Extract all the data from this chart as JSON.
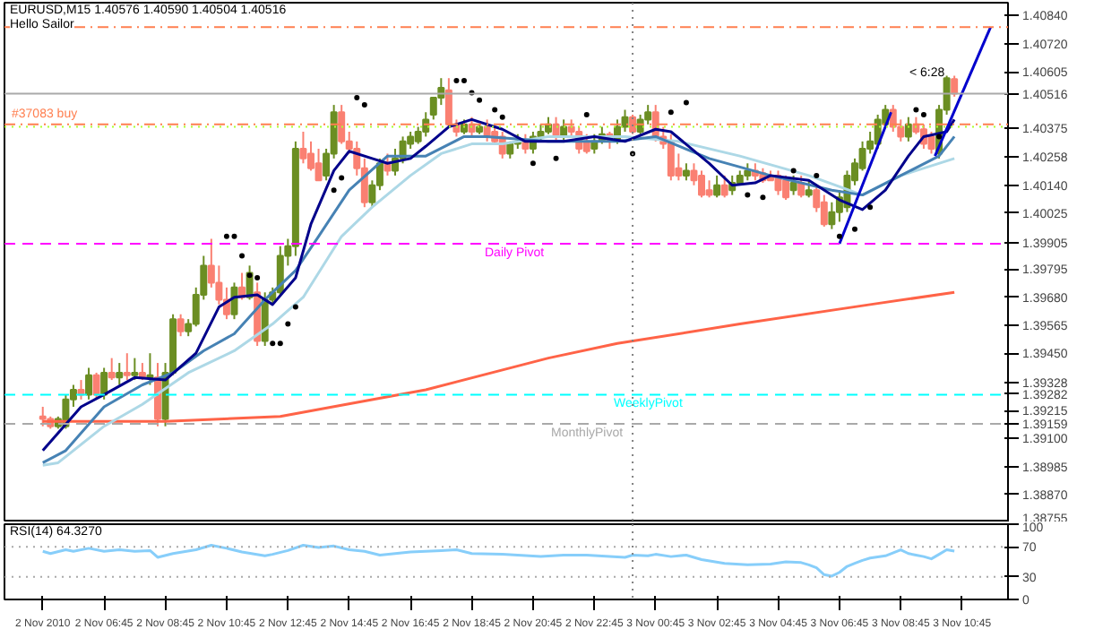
{
  "chart_data": [
    {
      "type": "candlestick",
      "title": "EURUSD,M15 1.40576 1.40590 1.40504 1.40516",
      "subtitle": "Hello Sailor",
      "x": [
        "2010-11-02T04:45",
        "2010-11-02T05:00",
        "2010-11-02T05:15",
        "2010-11-02T05:30",
        "2010-11-02T05:45",
        "2010-11-02T06:00",
        "2010-11-02T06:15",
        "2010-11-02T06:30",
        "2010-11-02T06:45",
        "2010-11-02T07:00",
        "2010-11-02T07:15",
        "2010-11-02T07:30",
        "2010-11-02T07:45",
        "2010-11-02T08:00",
        "2010-11-02T08:15",
        "2010-11-02T08:30",
        "2010-11-02T08:45",
        "2010-11-02T09:00",
        "2010-11-02T09:15",
        "2010-11-02T09:30",
        "2010-11-02T09:45",
        "2010-11-02T10:00",
        "2010-11-02T10:15",
        "2010-11-02T10:30",
        "2010-11-02T10:45",
        "2010-11-02T11:00",
        "2010-11-02T11:15",
        "2010-11-02T11:30",
        "2010-11-02T11:45",
        "2010-11-02T12:00",
        "2010-11-02T12:15",
        "2010-11-02T12:30",
        "2010-11-02T12:45",
        "2010-11-02T13:00",
        "2010-11-02T13:15",
        "2010-11-02T13:30",
        "2010-11-02T13:45",
        "2010-11-02T14:00",
        "2010-11-02T14:15",
        "2010-11-02T14:30",
        "2010-11-02T14:45",
        "2010-11-02T15:00",
        "2010-11-02T15:15",
        "2010-11-02T15:30",
        "2010-11-02T15:45",
        "2010-11-02T16:00",
        "2010-11-02T16:15",
        "2010-11-02T16:30",
        "2010-11-02T16:45",
        "2010-11-02T17:00",
        "2010-11-02T17:15",
        "2010-11-02T17:30",
        "2010-11-02T17:45",
        "2010-11-02T18:00",
        "2010-11-02T18:15",
        "2010-11-02T18:30",
        "2010-11-02T18:45",
        "2010-11-02T19:00",
        "2010-11-02T19:15",
        "2010-11-02T19:30",
        "2010-11-02T19:45",
        "2010-11-02T20:00",
        "2010-11-02T20:15",
        "2010-11-02T20:30",
        "2010-11-02T20:45",
        "2010-11-02T21:00",
        "2010-11-02T21:15",
        "2010-11-02T21:30",
        "2010-11-02T21:45",
        "2010-11-02T22:00",
        "2010-11-02T22:15",
        "2010-11-02T22:30",
        "2010-11-02T22:45",
        "2010-11-02T23:00",
        "2010-11-02T23:15",
        "2010-11-02T23:30",
        "2010-11-02T23:45",
        "2010-11-03T00:00",
        "2010-11-03T00:15",
        "2010-11-03T00:30",
        "2010-11-03T00:45",
        "2010-11-03T01:00",
        "2010-11-03T01:15",
        "2010-11-03T01:30",
        "2010-11-03T01:45",
        "2010-11-03T02:00",
        "2010-11-03T02:15",
        "2010-11-03T02:30",
        "2010-11-03T02:45",
        "2010-11-03T03:00",
        "2010-11-03T03:15",
        "2010-11-03T03:30",
        "2010-11-03T03:45",
        "2010-11-03T04:00",
        "2010-11-03T04:15",
        "2010-11-03T04:30",
        "2010-11-03T04:45",
        "2010-11-03T05:00",
        "2010-11-03T05:15",
        "2010-11-03T05:30",
        "2010-11-03T05:45",
        "2010-11-03T06:00",
        "2010-11-03T06:15",
        "2010-11-03T06:30",
        "2010-11-03T06:45",
        "2010-11-03T07:00",
        "2010-11-03T07:15",
        "2010-11-03T07:30",
        "2010-11-03T07:45",
        "2010-11-03T08:00",
        "2010-11-03T08:15",
        "2010-11-03T08:30",
        "2010-11-03T08:45",
        "2010-11-03T09:00",
        "2010-11-03T09:15",
        "2010-11-03T09:30",
        "2010-11-03T09:45",
        "2010-11-03T10:00",
        "2010-11-03T10:15",
        "2010-11-03T10:30"
      ],
      "ohlc": [
        [
          1.3919,
          1.3923,
          1.3915,
          1.3918
        ],
        [
          1.3918,
          1.3919,
          1.3914,
          1.3915
        ],
        [
          1.3915,
          1.3919,
          1.3914,
          1.3918
        ],
        [
          1.3915,
          1.3928,
          1.3914,
          1.3926
        ],
        [
          1.3926,
          1.3932,
          1.3923,
          1.393
        ],
        [
          1.393,
          1.3934,
          1.3926,
          1.3928
        ],
        [
          1.3928,
          1.3939,
          1.3926,
          1.3936
        ],
        [
          1.3936,
          1.3937,
          1.3926,
          1.3928
        ],
        [
          1.3928,
          1.3939,
          1.3926,
          1.3937
        ],
        [
          1.3937,
          1.3943,
          1.3934,
          1.3935
        ],
        [
          1.3935,
          1.3941,
          1.3932,
          1.3937
        ],
        [
          1.3937,
          1.3945,
          1.3934,
          1.3936
        ],
        [
          1.3936,
          1.3943,
          1.3934,
          1.3937
        ],
        [
          1.3937,
          1.3941,
          1.3934,
          1.3935
        ],
        [
          1.3935,
          1.3945,
          1.3932,
          1.3936
        ],
        [
          1.3935,
          1.3941,
          1.3915,
          1.3918
        ],
        [
          1.3918,
          1.3941,
          1.3915,
          1.3937
        ],
        [
          1.3937,
          1.3961,
          1.3936,
          1.3959
        ],
        [
          1.3959,
          1.3961,
          1.3952,
          1.3954
        ],
        [
          1.3954,
          1.3959,
          1.3952,
          1.3957
        ],
        [
          1.3957,
          1.3972,
          1.3956,
          1.3969
        ],
        [
          1.3969,
          1.3985,
          1.3967,
          1.3981
        ],
        [
          1.3981,
          1.3992,
          1.3972,
          1.3974
        ],
        [
          1.3974,
          1.3981,
          1.3965,
          1.3967
        ],
        [
          1.3967,
          1.3972,
          1.3959,
          1.3961
        ],
        [
          1.3961,
          1.3974,
          1.3959,
          1.3972
        ],
        [
          1.3972,
          1.3978,
          1.3967,
          1.3968
        ],
        [
          1.3968,
          1.3981,
          1.3967,
          1.3978
        ],
        [
          1.397,
          1.3974,
          1.3948,
          1.395
        ],
        [
          1.395,
          1.397,
          1.3948,
          1.3967
        ],
        [
          1.3967,
          1.3972,
          1.3965,
          1.397
        ],
        [
          1.397,
          1.3989,
          1.3969,
          1.3985
        ],
        [
          1.3985,
          1.3992,
          1.3981,
          1.3989
        ],
        [
          1.3989,
          1.4032,
          1.3985,
          1.4029
        ],
        [
          1.4029,
          1.4036,
          1.4023,
          1.4025
        ],
        [
          1.4027,
          1.4032,
          1.402,
          1.4021
        ],
        [
          1.4023,
          1.4029,
          1.4016,
          1.4016
        ],
        [
          1.4018,
          1.4029,
          1.4016,
          1.4027
        ],
        [
          1.4027,
          1.4047,
          1.4025,
          1.4044
        ],
        [
          1.4044,
          1.4047,
          1.4031,
          1.4032
        ],
        [
          1.4032,
          1.4036,
          1.4027,
          1.4029
        ],
        [
          1.4029,
          1.4032,
          1.4018,
          1.4021
        ],
        [
          1.4021,
          1.4025,
          1.4005,
          1.4007
        ],
        [
          1.4007,
          1.4016,
          1.4005,
          1.4014
        ],
        [
          1.4014,
          1.4025,
          1.4012,
          1.4023
        ],
        [
          1.4023,
          1.4027,
          1.4018,
          1.402
        ],
        [
          1.402,
          1.4029,
          1.4018,
          1.4025
        ],
        [
          1.4025,
          1.4034,
          1.4023,
          1.4032
        ],
        [
          1.4031,
          1.4036,
          1.4029,
          1.4034
        ],
        [
          1.4032,
          1.4038,
          1.4031,
          1.4036
        ],
        [
          1.4036,
          1.4044,
          1.4034,
          1.4041
        ],
        [
          1.4043,
          1.405,
          1.4041,
          1.405
        ],
        [
          1.405,
          1.4058,
          1.4047,
          1.4054
        ],
        [
          1.4053,
          1.4058,
          1.4038,
          1.4039
        ],
        [
          1.4039,
          1.4041,
          1.4034,
          1.4036
        ],
        [
          1.4036,
          1.4041,
          1.4035,
          1.4039
        ],
        [
          1.4039,
          1.4042,
          1.4034,
          1.4036
        ],
        [
          1.4036,
          1.4039,
          1.4035,
          1.4038
        ],
        [
          1.4038,
          1.4041,
          1.4032,
          1.4034
        ],
        [
          1.4036,
          1.4038,
          1.4031,
          1.4032
        ],
        [
          1.4034,
          1.4036,
          1.4025,
          1.4027
        ],
        [
          1.4027,
          1.4032,
          1.4025,
          1.4031
        ],
        [
          1.4031,
          1.4035,
          1.4029,
          1.4032
        ],
        [
          1.4032,
          1.4035,
          1.4027,
          1.4029
        ],
        [
          1.4029,
          1.4036,
          1.4027,
          1.4034
        ],
        [
          1.4034,
          1.4039,
          1.4032,
          1.4036
        ],
        [
          1.4036,
          1.4042,
          1.4035,
          1.4039
        ],
        [
          1.4039,
          1.4042,
          1.4032,
          1.4034
        ],
        [
          1.4034,
          1.4041,
          1.4032,
          1.4038
        ],
        [
          1.4038,
          1.4041,
          1.4034,
          1.4036
        ],
        [
          1.4036,
          1.4038,
          1.4027,
          1.4029
        ],
        [
          1.4032,
          1.4035,
          1.4027,
          1.4028
        ],
        [
          1.4029,
          1.4035,
          1.4027,
          1.4032
        ],
        [
          1.4032,
          1.4038,
          1.4031,
          1.4035
        ],
        [
          1.4035,
          1.4036,
          1.4029,
          1.4032
        ],
        [
          1.4032,
          1.4041,
          1.4031,
          1.4038
        ],
        [
          1.4038,
          1.4045,
          1.4036,
          1.4042
        ],
        [
          1.4042,
          1.4043,
          1.4035,
          1.4036
        ],
        [
          1.4036,
          1.4043,
          1.4035,
          1.4041
        ],
        [
          1.4041,
          1.4047,
          1.4039,
          1.4044
        ],
        [
          1.4044,
          1.4047,
          1.4032,
          1.4034
        ],
        [
          1.4034,
          1.4038,
          1.4029,
          1.4031
        ],
        [
          1.4032,
          1.4035,
          1.4016,
          1.4018
        ],
        [
          1.4021,
          1.4027,
          1.4016,
          1.4018
        ],
        [
          1.4018,
          1.4023,
          1.4016,
          1.402
        ],
        [
          1.402,
          1.4023,
          1.4014,
          1.4016
        ],
        [
          1.4018,
          1.402,
          1.4009,
          1.401
        ],
        [
          1.4012,
          1.4016,
          1.4009,
          1.401
        ],
        [
          1.401,
          1.4018,
          1.4009,
          1.4014
        ],
        [
          1.4014,
          1.4018,
          1.4009,
          1.401
        ],
        [
          1.4012,
          1.4018,
          1.401,
          1.4015
        ],
        [
          1.4015,
          1.402,
          1.4014,
          1.4018
        ],
        [
          1.4018,
          1.4023,
          1.4016,
          1.402
        ],
        [
          1.402,
          1.4023,
          1.4016,
          1.4018
        ],
        [
          1.4019,
          1.4021,
          1.4015,
          1.4016
        ],
        [
          1.4018,
          1.402,
          1.4016,
          1.4016
        ],
        [
          1.4018,
          1.402,
          1.401,
          1.4012
        ],
        [
          1.4016,
          1.4018,
          1.4008,
          1.4009
        ],
        [
          1.4012,
          1.4018,
          1.401,
          1.4015
        ],
        [
          1.4015,
          1.4018,
          1.4009,
          1.401
        ],
        [
          1.401,
          1.4016,
          1.4009,
          1.4012
        ],
        [
          1.4012,
          1.4014,
          1.4003,
          1.4005
        ],
        [
          1.4007,
          1.401,
          1.3997,
          1.3998
        ],
        [
          1.3998,
          1.4007,
          1.3996,
          1.4003
        ],
        [
          1.4003,
          1.4012,
          1.3999,
          1.4009
        ],
        [
          1.4005,
          1.402,
          1.4003,
          1.4018
        ],
        [
          1.4016,
          1.4025,
          1.4014,
          1.4023
        ],
        [
          1.4021,
          1.4032,
          1.402,
          1.4029
        ],
        [
          1.4029,
          1.4036,
          1.4027,
          1.4032
        ],
        [
          1.4031,
          1.4043,
          1.4029,
          1.4041
        ],
        [
          1.4039,
          1.4047,
          1.4038,
          1.4045
        ],
        [
          1.4045,
          1.4047,
          1.4036,
          1.4038
        ],
        [
          1.4038,
          1.4041,
          1.4032,
          1.4034
        ],
        [
          1.4034,
          1.4042,
          1.4032,
          1.4039
        ],
        [
          1.4039,
          1.4042,
          1.4035,
          1.4036
        ],
        [
          1.4037,
          1.4039,
          1.4029,
          1.4031
        ],
        [
          1.4034,
          1.4036,
          1.4027,
          1.4029
        ],
        [
          1.4027,
          1.4047,
          1.4025,
          1.4045
        ],
        [
          1.4045,
          1.4059,
          1.4043,
          1.4058
        ],
        [
          1.40576,
          1.4059,
          1.40504,
          1.40516
        ]
      ],
      "colors": [
        "#fa8072",
        "#fa8072",
        "#6b8e23",
        "#6b8e23",
        "#6b8e23",
        "#fa8072",
        "#6b8e23",
        "#fa8072",
        "#6b8e23",
        "#fa8072",
        "#6b8e23",
        "#fa8072",
        "#6b8e23",
        "#fa8072",
        "#6b8e23",
        "#fa8072",
        "#6b8e23",
        "#6b8e23",
        "#fa8072",
        "#6b8e23",
        "#6b8e23",
        "#6b8e23",
        "#fa8072",
        "#fa8072",
        "#fa8072",
        "#6b8e23",
        "#fa8072",
        "#6b8e23",
        "#fa8072",
        "#6b8e23",
        "#6b8e23",
        "#6b8e23",
        "#6b8e23",
        "#6b8e23",
        "#fa8072",
        "#fa8072",
        "#fa8072",
        "#6b8e23",
        "#6b8e23",
        "#fa8072",
        "#fa8072",
        "#fa8072",
        "#fa8072",
        "#6b8e23",
        "#6b8e23",
        "#fa8072",
        "#6b8e23",
        "#6b8e23",
        "#6b8e23",
        "#6b8e23",
        "#6b8e23",
        "#6b8e23",
        "#6b8e23",
        "#fa8072",
        "#fa8072",
        "#6b8e23",
        "#fa8072",
        "#6b8e23",
        "#fa8072",
        "#fa8072",
        "#fa8072",
        "#6b8e23",
        "#6b8e23",
        "#fa8072",
        "#6b8e23",
        "#6b8e23",
        "#6b8e23",
        "#fa8072",
        "#6b8e23",
        "#fa8072",
        "#fa8072",
        "#fa8072",
        "#6b8e23",
        "#6b8e23",
        "#fa8072",
        "#6b8e23",
        "#6b8e23",
        "#fa8072",
        "#6b8e23",
        "#6b8e23",
        "#fa8072",
        "#fa8072",
        "#fa8072",
        "#fa8072",
        "#6b8e23",
        "#fa8072",
        "#fa8072",
        "#fa8072",
        "#6b8e23",
        "#fa8072",
        "#6b8e23",
        "#6b8e23",
        "#6b8e23",
        "#fa8072",
        "#fa8072",
        "#fa8072",
        "#fa8072",
        "#fa8072",
        "#6b8e23",
        "#fa8072",
        "#6b8e23",
        "#fa8072",
        "#fa8072",
        "#6b8e23",
        "#6b8e23",
        "#6b8e23",
        "#6b8e23",
        "#6b8e23",
        "#6b8e23",
        "#6b8e23",
        "#6b8e23",
        "#fa8072",
        "#fa8072",
        "#6b8e23",
        "#fa8072",
        "#fa8072",
        "#fa8072",
        "#6b8e23",
        "#6b8e23",
        "#fa8072"
      ],
      "series": [
        {
          "type": "line",
          "color": "#ff6347",
          "x": [
            "2010-11-02T04:45",
            "2010-11-02T08:45",
            "2010-11-02T12:30",
            "2010-11-02T17:15",
            "2010-11-02T21:15",
            "2010-11-02T23:30",
            "2010-11-03T03:30",
            "2010-11-03T07:45",
            "2010-11-03T10:30"
          ],
          "values": [
            1.3917,
            1.3917,
            1.3919,
            1.393,
            1.3943,
            1.3949,
            1.3957,
            1.3965,
            1.397
          ]
        },
        {
          "type": "line",
          "color": "#add8e6",
          "x": [
            "2010-11-02T04:45",
            "2010-11-02T05:15",
            "2010-11-02T06:45",
            "2010-11-02T08:00",
            "2010-11-02T09:30",
            "2010-11-02T11:00",
            "2010-11-02T12:15",
            "2010-11-02T13:15",
            "2010-11-02T14:30",
            "2010-11-02T15:30",
            "2010-11-02T16:45",
            "2010-11-02T17:45",
            "2010-11-02T18:45",
            "2010-11-02T19:45",
            "2010-11-02T21:15",
            "2010-11-02T23:45",
            "2010-11-03T01:30",
            "2010-11-03T03:30",
            "2010-11-03T05:45",
            "2010-11-03T07:30",
            "2010-11-03T08:45",
            "2010-11-03T10:30"
          ],
          "values": [
            1.3899,
            1.39,
            1.3915,
            1.3924,
            1.3937,
            1.3946,
            1.3957,
            1.3968,
            1.3993,
            1.4005,
            1.4018,
            1.4027,
            1.4031,
            1.4031,
            1.4034,
            1.4034,
            1.4032,
            1.4026,
            1.4018,
            1.401,
            1.4018,
            1.4025
          ]
        },
        {
          "type": "line",
          "color": "#4682b4",
          "x": [
            "2010-11-02T04:45",
            "2010-11-02T05:30",
            "2010-11-02T06:45",
            "2010-11-02T08:00",
            "2010-11-02T09:00",
            "2010-11-02T10:00",
            "2010-11-02T11:00",
            "2010-11-02T12:00",
            "2010-11-02T13:00",
            "2010-11-02T13:45",
            "2010-11-02T14:45",
            "2010-11-02T16:00",
            "2010-11-02T17:15",
            "2010-11-02T18:30",
            "2010-11-02T19:15",
            "2010-11-02T21:15",
            "2010-11-02T23:30",
            "2010-11-03T00:45",
            "2010-11-03T02:30",
            "2010-11-03T04:30",
            "2010-11-03T06:30",
            "2010-11-03T07:30",
            "2010-11-03T08:45",
            "2010-11-03T10:00",
            "2010-11-03T10:30"
          ],
          "values": [
            1.39,
            1.3905,
            1.3923,
            1.3932,
            1.3937,
            1.3946,
            1.3953,
            1.3967,
            1.3979,
            1.3993,
            1.4012,
            1.4026,
            1.4026,
            1.4034,
            1.4034,
            1.4032,
            1.4032,
            1.4034,
            1.4025,
            1.4018,
            1.4012,
            1.401,
            1.4018,
            1.4026,
            1.4034
          ]
        },
        {
          "type": "line",
          "color": "#00008b",
          "x": [
            "2010-11-02T04:45",
            "2010-11-02T06:00",
            "2010-11-02T06:45",
            "2010-11-02T07:45",
            "2010-11-02T08:45",
            "2010-11-02T09:45",
            "2010-11-02T10:30",
            "2010-11-02T11:00",
            "2010-11-02T11:45",
            "2010-11-02T12:15",
            "2010-11-02T13:00",
            "2010-11-02T13:30",
            "2010-11-02T14:15",
            "2010-11-02T14:45",
            "2010-11-02T15:30",
            "2010-11-02T16:00",
            "2010-11-02T16:45",
            "2010-11-02T17:15",
            "2010-11-02T18:00",
            "2010-11-02T18:45",
            "2010-11-02T19:45",
            "2010-11-02T20:30",
            "2010-11-02T21:45",
            "2010-11-02T22:45",
            "2010-11-02T23:45",
            "2010-11-03T00:45",
            "2010-11-03T01:15",
            "2010-11-03T02:30",
            "2010-11-03T03:15",
            "2010-11-03T04:00",
            "2010-11-03T04:30",
            "2010-11-03T05:45",
            "2010-11-03T06:45",
            "2010-11-03T07:30",
            "2010-11-03T08:15",
            "2010-11-03T09:00",
            "2010-11-03T09:30",
            "2010-11-03T10:15",
            "2010-11-03T10:30"
          ],
          "values": [
            1.3905,
            1.3923,
            1.3928,
            1.3935,
            1.3934,
            1.3945,
            1.3964,
            1.3968,
            1.3969,
            1.3965,
            1.3976,
            1.3998,
            1.402,
            1.4028,
            1.4025,
            1.4023,
            1.4025,
            1.403,
            1.4038,
            1.4041,
            1.4037,
            1.4032,
            1.4032,
            1.4034,
            1.4032,
            1.4037,
            1.4036,
            1.4023,
            1.4014,
            1.4015,
            1.4018,
            1.4016,
            1.4008,
            1.4004,
            1.4012,
            1.4026,
            1.4034,
            1.4036,
            1.4041
          ]
        },
        {
          "type": "line",
          "color": "#0000cd",
          "x": [
            "2010-11-03T06:45",
            "2010-11-03T08:26"
          ],
          "values": [
            1.399,
            1.4044
          ]
        },
        {
          "type": "line",
          "color": "#0000cd",
          "x": [
            "2010-11-03T09:52",
            "2010-11-03T11:41"
          ],
          "values": [
            1.4026,
            1.4079
          ]
        },
        {
          "type": "scatter",
          "color": "#000000",
          "marker": "circle",
          "x": [
            "2010-11-02T10:45",
            "2010-11-02T11:00",
            "2010-11-02T11:15",
            "2010-11-02T11:30",
            "2010-11-02T11:45",
            "2010-11-02T12:15",
            "2010-11-02T12:30",
            "2010-11-02T12:45",
            "2010-11-02T13:00",
            "2010-11-02T14:15",
            "2010-11-02T14:30",
            "2010-11-02T15:00",
            "2010-11-02T15:15",
            "2010-11-02T18:15",
            "2010-11-02T18:30",
            "2010-11-02T18:45",
            "2010-11-02T19:00",
            "2010-11-02T19:30",
            "2010-11-02T19:45",
            "2010-11-02T20:45",
            "2010-11-02T21:30",
            "2010-11-02T22:30",
            "2010-11-03T00:00",
            "2010-11-03T01:15",
            "2010-11-03T01:45",
            "2010-11-03T03:45",
            "2010-11-03T04:15",
            "2010-11-03T05:15",
            "2010-11-03T06:00",
            "2010-11-03T06:45",
            "2010-11-03T07:15",
            "2010-11-03T07:45",
            "2010-11-03T09:15",
            "2010-11-03T09:30",
            "2010-11-03T10:00"
          ],
          "values": [
            1.3993,
            1.3993,
            1.3985,
            1.3977,
            1.3976,
            1.3949,
            1.3949,
            1.3957,
            1.3964,
            1.4012,
            1.4017,
            1.405,
            1.4047,
            1.4057,
            1.4057,
            1.4052,
            1.4049,
            1.4045,
            1.4042,
            1.4023,
            1.4025,
            1.4043,
            1.4027,
            1.4044,
            1.4048,
            1.401,
            1.4009,
            1.402,
            1.4018,
            1.3993,
            1.3996,
            1.4005,
            1.4045,
            1.4043,
            1.4034
          ]
        }
      ],
      "ref_lines": [
        {
          "axis": "y",
          "value": 1.4079,
          "color": "#ff7f50",
          "line_style": "dashdot"
        },
        {
          "axis": "y",
          "value": 1.40516,
          "color": "#a9a9a9",
          "line_style": "solid"
        },
        {
          "axis": "y",
          "value": 1.4039,
          "label": "#37083 buy",
          "color": "#ff7f50",
          "line_style": "dashdot"
        },
        {
          "axis": "y",
          "value": 1.4038,
          "color": "#adff2f",
          "line_style": "dotted"
        },
        {
          "axis": "y",
          "value": 1.399,
          "label": "Daily Pivot",
          "color": "#ff00ff",
          "line_style": "dashed"
        },
        {
          "axis": "y",
          "value": 1.3928,
          "label": "WeeklyPivot",
          "color": "#00ffff",
          "line_style": "dashed"
        },
        {
          "axis": "y",
          "value": 1.3916,
          "label": "MonthlyPivot",
          "color": "#a9a9a9",
          "line_style": "dashed"
        },
        {
          "axis": "x",
          "value": "2010-11-03T00:00",
          "color": "#808080",
          "line_style": "dotted"
        }
      ],
      "annotations": [
        "< 6:28"
      ],
      "xlim": [
        "2010-11-02T03:30",
        "2010-11-03T12:15"
      ],
      "ylim": [
        1.38755,
        1.4089
      ],
      "yticks": [
        {
          "value": 1.4084,
          "label": "1.40840"
        },
        {
          "value": 1.4072,
          "label": "1.40720"
        },
        1.40605,
        1.40516,
        1.40375,
        1.40258,
        {
          "value": 1.4014,
          "label": "1.40140"
        },
        1.40025,
        1.39905,
        1.39795,
        {
          "value": 1.3968,
          "label": "1.39680"
        },
        1.39565,
        {
          "value": 1.3945,
          "label": "1.39450"
        },
        1.39328,
        1.39282,
        1.39215,
        1.39159,
        {
          "value": 1.391,
          "label": "1.39100"
        },
        1.38985,
        {
          "value": 1.3887,
          "label": "1.38870"
        },
        1.38755
      ],
      "tick_labels": "y",
      "grid": false
    },
    {
      "type": "line",
      "title": "RSI(14) 64.3270",
      "series": [
        {
          "color": "#87cefa",
          "x": [
            "2010-11-02T04:45",
            "2010-11-02T05:00",
            "2010-11-02T05:30",
            "2010-11-02T05:45",
            "2010-11-02T06:15",
            "2010-11-02T06:45",
            "2010-11-02T07:15",
            "2010-11-02T07:45",
            "2010-11-02T08:15",
            "2010-11-02T08:30",
            "2010-11-02T09:00",
            "2010-11-02T09:45",
            "2010-11-02T10:15",
            "2010-11-02T10:45",
            "2010-11-02T11:15",
            "2010-11-02T12:00",
            "2010-11-02T12:15",
            "2010-11-02T12:45",
            "2010-11-02T13:15",
            "2010-11-02T13:45",
            "2010-11-02T14:15",
            "2010-11-02T14:45",
            "2010-11-02T15:15",
            "2010-11-02T15:45",
            "2010-11-02T16:15",
            "2010-11-02T16:45",
            "2010-11-02T17:15",
            "2010-11-02T17:45",
            "2010-11-02T18:15",
            "2010-11-02T18:45",
            "2010-11-02T19:45",
            "2010-11-02T20:15",
            "2010-11-02T21:00",
            "2010-11-02T21:45",
            "2010-11-02T22:30",
            "2010-11-02T23:15",
            "2010-11-02T23:45",
            "2010-11-03T00:00",
            "2010-11-03T00:30",
            "2010-11-03T00:45",
            "2010-11-03T01:15",
            "2010-11-03T01:45",
            "2010-11-03T02:15",
            "2010-11-03T03:00",
            "2010-11-03T03:45",
            "2010-11-03T04:30",
            "2010-11-03T05:00",
            "2010-11-03T05:30",
            "2010-11-03T05:45",
            "2010-11-03T06:00",
            "2010-11-03T06:15",
            "2010-11-03T06:30",
            "2010-11-03T06:45",
            "2010-11-03T07:00",
            "2010-11-03T07:15",
            "2010-11-03T07:30",
            "2010-11-03T07:45",
            "2010-11-03T08:15",
            "2010-11-03T08:45",
            "2010-11-03T09:00",
            "2010-11-03T09:15",
            "2010-11-03T09:30",
            "2010-11-03T09:45",
            "2010-11-03T10:00",
            "2010-11-03T10:15",
            "2010-11-03T10:30"
          ],
          "values": [
            64,
            61,
            66,
            64,
            68,
            64,
            66,
            64,
            65,
            56,
            61,
            66,
            72,
            68,
            63,
            58,
            60,
            65,
            72,
            69,
            71,
            66,
            64,
            59,
            61,
            63,
            64,
            65,
            66,
            61,
            60,
            59,
            57,
            59,
            59,
            57,
            56,
            59,
            58,
            60,
            57,
            59,
            53,
            48,
            46,
            47,
            50,
            49,
            46,
            42,
            33,
            31,
            36,
            44,
            48,
            52,
            55,
            58,
            66,
            61,
            59,
            57,
            54,
            60,
            66,
            64.3
          ]
        }
      ],
      "ref_lines": [
        {
          "axis": "y",
          "value": 70,
          "color": "#a9a9a9",
          "line_style": "dotted"
        },
        {
          "axis": "y",
          "value": 30,
          "color": "#a9a9a9",
          "line_style": "dotted"
        },
        {
          "axis": "x",
          "value": "2010-11-03T00:00",
          "color": "#808080",
          "line_style": "dotted"
        }
      ],
      "xlim": [
        "2010-11-02T03:30",
        "2010-11-03T12:15"
      ],
      "ylim": [
        0,
        100
      ],
      "yticks": [
        0,
        30,
        70,
        100
      ],
      "xticks": [
        {
          "value": "2010-11-02T04:45",
          "label": "2 Nov 2010"
        },
        {
          "value": "2010-11-02T06:45",
          "label": "2 Nov 06:45"
        },
        {
          "value": "2010-11-02T08:45",
          "label": "2 Nov 08:45"
        },
        {
          "value": "2010-11-02T10:45",
          "label": "2 Nov 10:45"
        },
        {
          "value": "2010-11-02T12:45",
          "label": "2 Nov 12:45"
        },
        {
          "value": "2010-11-02T14:45",
          "label": "2 Nov 14:45"
        },
        {
          "value": "2010-11-02T16:45",
          "label": "2 Nov 16:45"
        },
        {
          "value": "2010-11-02T18:45",
          "label": "2 Nov 18:45"
        },
        {
          "value": "2010-11-02T20:45",
          "label": "2 Nov 20:45"
        },
        {
          "value": "2010-11-02T22:45",
          "label": "2 Nov 22:45"
        },
        {
          "value": "2010-11-03T00:45",
          "label": "3 Nov 00:45"
        },
        {
          "value": "2010-11-03T02:45",
          "label": "3 Nov 02:45"
        },
        {
          "value": "2010-11-03T04:45",
          "label": "3 Nov 04:45"
        },
        {
          "value": "2010-11-03T06:45",
          "label": "3 Nov 06:45"
        },
        {
          "value": "2010-11-03T08:45",
          "label": "3 Nov 08:45"
        },
        {
          "value": "2010-11-03T10:45",
          "label": "3 Nov 10:45"
        }
      ],
      "grid": false
    }
  ]
}
